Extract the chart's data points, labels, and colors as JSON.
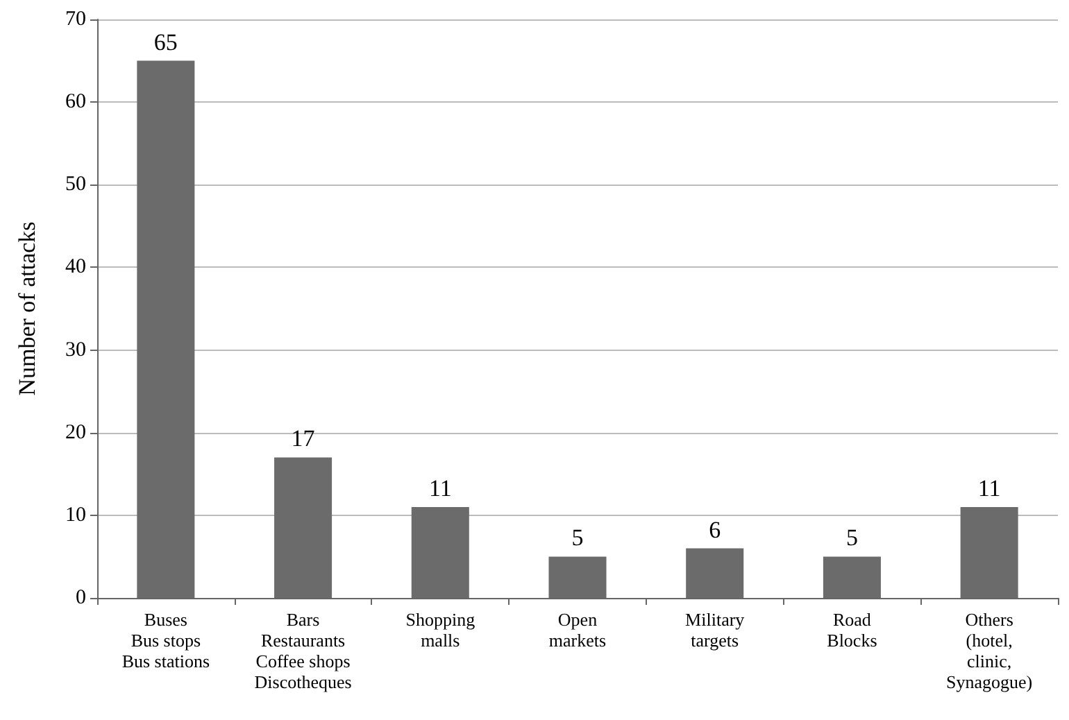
{
  "chart_data": {
    "type": "bar",
    "ylabel": "Number of attacks",
    "categories": [
      "Buses\nBus stops\nBus stations",
      "Bars\nRestaurants\nCoffee shops\nDiscotheques",
      "Shopping\nmalls",
      "Open\nmarkets",
      "Military\ntargets",
      "Road\nBlocks",
      "Others\n(hotel,\nclinic,\nSynagogue)"
    ],
    "values": [
      65,
      17,
      11,
      5,
      6,
      5,
      11
    ],
    "color": "#6b6b6b",
    "ylim": [
      0,
      70
    ],
    "yticks": [
      0,
      10,
      20,
      30,
      40,
      50,
      60,
      70
    ],
    "grid": "y",
    "data_labels": true
  }
}
